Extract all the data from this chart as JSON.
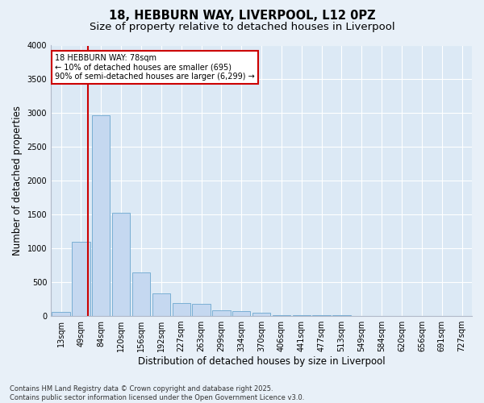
{
  "title_line1": "18, HEBBURN WAY, LIVERPOOL, L12 0PZ",
  "title_line2": "Size of property relative to detached houses in Liverpool",
  "xlabel": "Distribution of detached houses by size in Liverpool",
  "ylabel": "Number of detached properties",
  "bar_color": "#c5d8f0",
  "bar_edge_color": "#7aafd4",
  "plot_bg_color": "#dce9f5",
  "fig_bg_color": "#e8f0f8",
  "grid_color": "#ffffff",
  "vline_color": "#cc0000",
  "annotation_box_color": "#cc0000",
  "annotation_text": "18 HEBBURN WAY: 78sqm\n← 10% of detached houses are smaller (695)\n90% of semi-detached houses are larger (6,299) →",
  "vline_bar_index": 1,
  "categories": [
    "13sqm",
    "49sqm",
    "84sqm",
    "120sqm",
    "156sqm",
    "192sqm",
    "227sqm",
    "263sqm",
    "299sqm",
    "334sqm",
    "370sqm",
    "406sqm",
    "441sqm",
    "477sqm",
    "513sqm",
    "549sqm",
    "584sqm",
    "620sqm",
    "656sqm",
    "691sqm",
    "727sqm"
  ],
  "values": [
    60,
    1100,
    2970,
    1530,
    650,
    330,
    195,
    175,
    85,
    75,
    45,
    10,
    10,
    10,
    10,
    5,
    5,
    5,
    5,
    5,
    5
  ],
  "ylim": [
    0,
    4000
  ],
  "yticks": [
    0,
    500,
    1000,
    1500,
    2000,
    2500,
    3000,
    3500,
    4000
  ],
  "footnote": "Contains HM Land Registry data © Crown copyright and database right 2025.\nContains public sector information licensed under the Open Government Licence v3.0.",
  "title_fontsize": 10.5,
  "subtitle_fontsize": 9.5,
  "annotation_fontsize": 7.0,
  "axis_label_fontsize": 8.5,
  "tick_fontsize": 7.0,
  "footnote_fontsize": 6.0
}
